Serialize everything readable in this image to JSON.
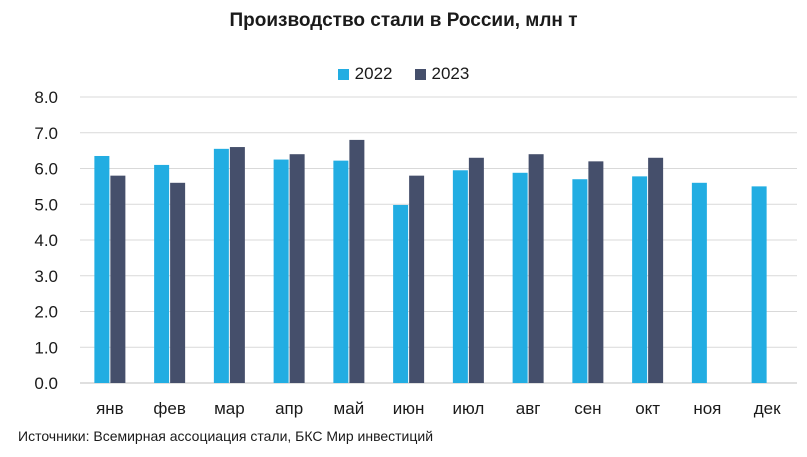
{
  "colors": {
    "series_2022": "#22ade2",
    "series_2023": "#454f6b",
    "grid": "#d9d9d9",
    "axis": "#bfbfbf"
  },
  "source": "Источники: Всемирная ассоциация стали, БКС Мир инвестиций",
  "chart_data": {
    "type": "bar",
    "title": "Производство стали в России, млн т",
    "xlabel": "",
    "ylabel": "",
    "ylim": [
      0,
      8
    ],
    "yticks": [
      "0.0",
      "1.0",
      "2.0",
      "3.0",
      "4.0",
      "5.0",
      "6.0",
      "7.0",
      "8.0"
    ],
    "grid": true,
    "legend_position": "top",
    "categories": [
      "янв",
      "фев",
      "мар",
      "апр",
      "май",
      "июн",
      "июл",
      "авг",
      "сен",
      "окт",
      "ноя",
      "дек"
    ],
    "series": [
      {
        "name": "2022",
        "values": [
          6.35,
          6.1,
          6.55,
          6.25,
          6.22,
          4.98,
          5.95,
          5.88,
          5.7,
          5.78,
          5.6,
          5.5
        ]
      },
      {
        "name": "2023",
        "values": [
          5.8,
          5.6,
          6.6,
          6.4,
          6.8,
          5.8,
          6.3,
          6.4,
          6.2,
          6.3,
          null,
          null
        ]
      }
    ]
  }
}
